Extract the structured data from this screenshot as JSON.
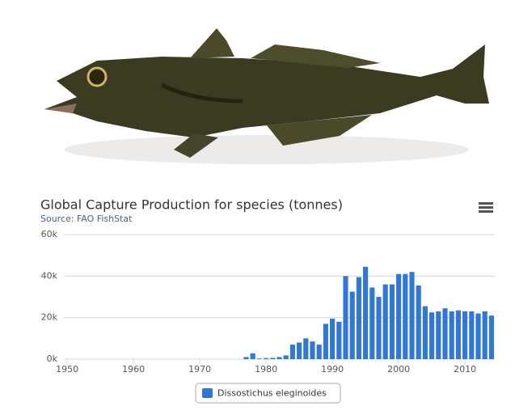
{
  "chart_data": {
    "type": "bar",
    "title": "Global Capture Production for species (tonnes)",
    "subtitle": "Source: FAO FishStat",
    "x": [
      1950,
      1951,
      1952,
      1953,
      1954,
      1955,
      1956,
      1957,
      1958,
      1959,
      1960,
      1961,
      1962,
      1963,
      1964,
      1965,
      1966,
      1967,
      1968,
      1969,
      1970,
      1971,
      1972,
      1973,
      1974,
      1975,
      1976,
      1977,
      1978,
      1979,
      1980,
      1981,
      1982,
      1983,
      1984,
      1985,
      1986,
      1987,
      1988,
      1989,
      1990,
      1991,
      1992,
      1993,
      1994,
      1995,
      1996,
      1997,
      1998,
      1999,
      2000,
      2001,
      2002,
      2003,
      2004,
      2005,
      2006,
      2007,
      2008,
      2009,
      2010,
      2011,
      2012,
      2013,
      2014
    ],
    "series": [
      {
        "name": "Dissostichus eleginoides",
        "color": "#3278d2",
        "values": [
          0,
          0,
          0,
          0,
          0,
          0,
          0,
          0,
          0,
          0,
          0,
          0,
          0,
          0,
          0,
          0,
          0,
          0,
          0,
          0,
          0,
          0,
          0,
          0,
          0,
          0,
          0,
          1000,
          2800,
          300,
          500,
          600,
          1000,
          1800,
          7000,
          8000,
          10000,
          8500,
          7000,
          17000,
          19500,
          18000,
          40000,
          32500,
          39500,
          44500,
          34500,
          30000,
          36000,
          36000,
          41000,
          41000,
          42000,
          35500,
          25500,
          22500,
          23000,
          24500,
          23000,
          23500,
          23000,
          23000,
          22000,
          23000,
          21000
        ]
      }
    ],
    "xlim": [
      1949.5,
      2014.5
    ],
    "xticks": [
      1950,
      1960,
      1970,
      1980,
      1990,
      2000,
      2010
    ],
    "ylim": [
      0,
      60000
    ],
    "yticks": [
      {
        "value": 0,
        "label": "0k"
      },
      {
        "value": 20000,
        "label": "20k"
      },
      {
        "value": 40000,
        "label": "40k"
      },
      {
        "value": 60000,
        "label": "60k"
      }
    ],
    "grid": true
  }
}
